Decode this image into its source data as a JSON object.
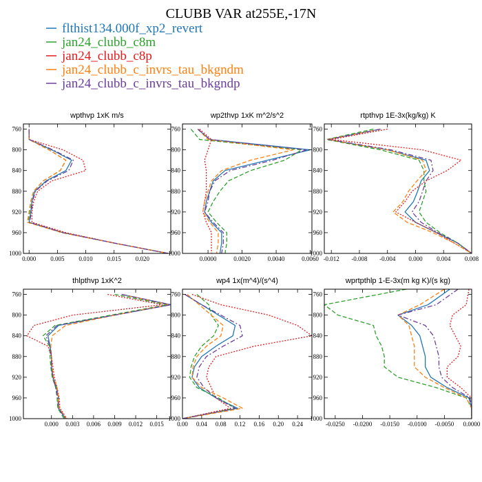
{
  "title": "CLUBB VAR at255E,-17N",
  "legend": [
    {
      "label": "flthist134.000f_xp2_revert",
      "color": "#1f77b4",
      "dash": "solid"
    },
    {
      "label": "jan24_clubb_c8m",
      "color": "#2ca02c",
      "dash": "dash"
    },
    {
      "label": "jan24_clubb_c8p",
      "color": "#e31a1c",
      "dash": "dot"
    },
    {
      "label": "jan24_clubb_c_invrs_tau_bkgndm",
      "color": "#ff7f0e",
      "dash": "dash"
    },
    {
      "label": "jan24_clubb_c_invrs_tau_bkgndp",
      "color": "#6a3d9a",
      "dash": "dashdot"
    }
  ],
  "chart_data": [
    {
      "type": "line",
      "title": "wpthvp  1xK m/s",
      "xlim": [
        -0.001,
        0.025
      ],
      "ylim": [
        1000,
        750
      ],
      "xticks": [
        0.0,
        0.005,
        0.01,
        0.015,
        0.02
      ],
      "xtick_labels": [
        "0.000",
        "0.005",
        "0.010",
        "0.015",
        "0.020"
      ],
      "yticks": [
        760,
        800,
        840,
        880,
        920,
        960,
        1000
      ],
      "y": [
        760,
        780,
        800,
        820,
        840,
        860,
        880,
        900,
        920,
        940,
        960,
        980,
        1000
      ],
      "series": [
        {
          "name": "flthist134.000f_xp2_revert",
          "x": [
            0.0,
            0.0,
            0.004,
            0.0075,
            0.0065,
            0.003,
            0.001,
            0.0005,
            0.0003,
            0.0,
            0.006,
            0.015,
            0.0245
          ]
        },
        {
          "name": "jan24_clubb_c8m",
          "x": [
            0.0,
            0.0,
            0.0035,
            0.0065,
            0.0055,
            0.0025,
            0.0008,
            0.0003,
            0.0001,
            -0.0002,
            0.006,
            0.015,
            0.0245
          ]
        },
        {
          "name": "jan24_clubb_c8p",
          "x": [
            0.0,
            0.0,
            0.006,
            0.0095,
            0.01,
            0.004,
            0.0015,
            0.0008,
            0.0005,
            0.0005,
            0.0065,
            0.015,
            0.0245
          ]
        },
        {
          "name": "jan24_clubb_c_invrs_tau_bkgndm",
          "x": [
            0.0,
            0.0,
            0.0035,
            0.0065,
            0.0055,
            0.0025,
            0.0008,
            0.0003,
            0.0,
            -0.0003,
            0.0058,
            0.015,
            0.0245
          ]
        },
        {
          "name": "jan24_clubb_c_invrs_tau_bkgndp",
          "x": [
            0.0,
            0.0,
            0.0042,
            0.0078,
            0.007,
            0.0032,
            0.0011,
            0.0006,
            0.0004,
            0.0001,
            0.006,
            0.015,
            0.0245
          ]
        }
      ]
    },
    {
      "type": "line",
      "title": "wp2thvp  1xK m^2/s^2",
      "xlim": [
        -0.0015,
        0.0061
      ],
      "ylim": [
        1000,
        750
      ],
      "xticks": [
        0.0,
        0.002,
        0.004,
        0.006
      ],
      "xtick_labels": [
        "0.0000",
        "0.0020",
        "0.0040",
        "0.0060"
      ],
      "yticks": [
        760,
        800,
        840,
        880,
        920,
        960,
        1000
      ],
      "y": [
        760,
        780,
        800,
        820,
        840,
        860,
        880,
        900,
        920,
        940,
        960,
        980,
        1000
      ],
      "series": [
        {
          "name": "flthist134.000f_xp2_revert",
          "x": [
            -0.0006,
            0.0001,
            0.006,
            0.0035,
            0.001,
            0.0003,
            0.0001,
            -0.0001,
            -0.0002,
            0.0002,
            0.0008,
            0.0008,
            0.0007
          ]
        },
        {
          "name": "jan24_clubb_c8m",
          "x": [
            -0.001,
            -0.0005,
            0.0055,
            0.0045,
            0.0025,
            0.0012,
            0.0007,
            0.0003,
            0.0,
            0.0005,
            0.0011,
            0.0011,
            0.001
          ]
        },
        {
          "name": "jan24_clubb_c8p",
          "x": [
            -0.0005,
            0.0002,
            0.0,
            -0.0002,
            -0.0001,
            -0.0001,
            -0.0001,
            -0.0002,
            -0.0003,
            -0.0001,
            0.0002,
            0.0002,
            0.0002
          ]
        },
        {
          "name": "jan24_clubb_c_invrs_tau_bkgndm",
          "x": [
            -0.0006,
            0.0,
            0.005,
            0.0025,
            0.0008,
            0.0002,
            0.0,
            -0.0002,
            -0.0003,
            0.0001,
            0.0006,
            0.0006,
            0.0005
          ]
        },
        {
          "name": "jan24_clubb_c_invrs_tau_bkgndp",
          "x": [
            -0.0006,
            0.0001,
            0.0058,
            0.0038,
            0.0013,
            0.0004,
            0.0001,
            0.0,
            -0.0002,
            0.0003,
            0.0009,
            0.0009,
            0.0008
          ]
        }
      ]
    },
    {
      "type": "line",
      "title": "rtpthvp  1E-3x(kg/kg) K",
      "xlim": [
        -0.013,
        0.008
      ],
      "ylim": [
        1000,
        750
      ],
      "xticks": [
        -0.012,
        -0.008,
        -0.004,
        0.0,
        0.004,
        0.008
      ],
      "xtick_labels": [
        "-0.012",
        "-0.008",
        "-0.004",
        "0.000",
        "0.004",
        "0.008"
      ],
      "yticks": [
        760,
        800,
        840,
        880,
        920,
        960,
        1000
      ],
      "y": [
        760,
        780,
        800,
        820,
        840,
        860,
        880,
        900,
        920,
        940,
        960,
        980,
        1000
      ],
      "series": [
        {
          "name": "flthist134.000f_xp2_revert",
          "x": [
            -0.005,
            -0.0125,
            -0.004,
            0.0015,
            0.002,
            0.0008,
            0.0003,
            -0.0003,
            -0.0015,
            0.0,
            0.003,
            0.006,
            0.008
          ]
        },
        {
          "name": "jan24_clubb_c8m",
          "x": [
            -0.006,
            -0.0127,
            -0.005,
            0.0005,
            0.0012,
            0.0012,
            0.0015,
            0.001,
            0.0005,
            0.0015,
            0.0035,
            0.006,
            0.008
          ]
        },
        {
          "name": "jan24_clubb_c8p",
          "x": [
            -0.004,
            -0.012,
            0.001,
            0.0065,
            0.0045,
            0.0015,
            -0.0005,
            -0.0015,
            -0.0028,
            0.0,
            0.003,
            0.0055,
            0.008
          ]
        },
        {
          "name": "jan24_clubb_c_invrs_tau_bkgndm",
          "x": [
            -0.005,
            -0.0125,
            -0.004,
            0.001,
            0.0015,
            0.0002,
            -0.001,
            -0.0018,
            -0.0032,
            -0.0012,
            0.0025,
            0.0055,
            0.008
          ]
        },
        {
          "name": "jan24_clubb_c_invrs_tau_bkgndp",
          "x": [
            -0.005,
            -0.0124,
            -0.0035,
            0.0022,
            0.0025,
            0.0015,
            0.001,
            0.0005,
            -0.0005,
            0.0008,
            0.0032,
            0.006,
            0.008
          ]
        }
      ]
    },
    {
      "type": "line",
      "title": "thlpthvp  1xK^2",
      "xlim": [
        -0.004,
        0.017
      ],
      "ylim": [
        1000,
        750
      ],
      "xticks": [
        0.0,
        0.003,
        0.006,
        0.009,
        0.012,
        0.015
      ],
      "xtick_labels": [
        "0.000",
        "0.003",
        "0.006",
        "0.009",
        "0.012",
        "0.015"
      ],
      "yticks": [
        760,
        800,
        840,
        880,
        920,
        960,
        1000
      ],
      "y": [
        760,
        780,
        800,
        820,
        840,
        860,
        880,
        900,
        920,
        940,
        960,
        980,
        1000
      ],
      "series": [
        {
          "name": "flthist134.000f_xp2_revert",
          "x": [
            0.01,
            0.017,
            0.009,
            0.001,
            -0.0005,
            -0.0002,
            0.0,
            0.0,
            0.0002,
            0.0007,
            0.001,
            0.001,
            0.002
          ]
        },
        {
          "name": "jan24_clubb_c8m",
          "x": [
            0.009,
            0.0165,
            0.0085,
            0.0005,
            -0.0012,
            -0.0003,
            -0.0002,
            -0.0001,
            0.0001,
            0.0006,
            0.0008,
            0.0009,
            0.0018
          ]
        },
        {
          "name": "jan24_clubb_c8p",
          "x": [
            0.008,
            0.0158,
            0.003,
            -0.0025,
            -0.0035,
            -0.0005,
            0.0,
            0.0002,
            0.0004,
            0.0008,
            0.0011,
            0.0012,
            0.0022
          ]
        },
        {
          "name": "jan24_clubb_c_invrs_tau_bkgndm",
          "x": [
            0.01,
            0.0168,
            0.009,
            0.002,
            0.0001,
            -0.0001,
            0.0,
            0.0001,
            0.0003,
            0.0008,
            0.001,
            0.0011,
            0.0021
          ]
        },
        {
          "name": "jan24_clubb_c_invrs_tau_bkgndp",
          "x": [
            0.01,
            0.017,
            0.009,
            0.0008,
            -0.0008,
            -0.0002,
            0.0,
            0.0,
            0.0002,
            0.0006,
            0.0009,
            0.001,
            0.002
          ]
        }
      ]
    },
    {
      "type": "line",
      "title": "wp4  1x(m^4)/(s^4)",
      "xlim": [
        0.0,
        0.27
      ],
      "ylim": [
        1000,
        750
      ],
      "xticks": [
        0.0,
        0.04,
        0.08,
        0.12,
        0.16,
        0.2,
        0.24
      ],
      "xtick_labels": [
        "0.00",
        "0.04",
        "0.08",
        "0.12",
        "0.16",
        "0.20",
        "0.24"
      ],
      "yticks": [
        760,
        800,
        840,
        880,
        920,
        960,
        1000
      ],
      "y": [
        760,
        780,
        800,
        820,
        840,
        860,
        880,
        900,
        920,
        940,
        960,
        980,
        1000
      ],
      "series": [
        {
          "name": "flthist134.000f_xp2_revert",
          "x": [
            0.005,
            0.04,
            0.075,
            0.11,
            0.105,
            0.07,
            0.04,
            0.025,
            0.02,
            0.035,
            0.07,
            0.115,
            0.0
          ]
        },
        {
          "name": "jan24_clubb_c8m",
          "x": [
            0.03,
            0.055,
            0.06,
            0.075,
            0.065,
            0.04,
            0.025,
            0.018,
            0.015,
            0.03,
            0.075,
            0.11,
            0.0
          ]
        },
        {
          "name": "jan24_clubb_c8p",
          "x": [
            0.02,
            0.08,
            0.18,
            0.24,
            0.27,
            0.15,
            0.07,
            0.055,
            0.05,
            0.06,
            0.07,
            0.1,
            0.0
          ]
        },
        {
          "name": "jan24_clubb_c_invrs_tau_bkgndm",
          "x": [
            0.01,
            0.035,
            0.06,
            0.085,
            0.08,
            0.05,
            0.03,
            0.022,
            0.02,
            0.04,
            0.085,
            0.125,
            0.0
          ]
        },
        {
          "name": "jan24_clubb_c_invrs_tau_bkgndp",
          "x": [
            0.005,
            0.04,
            0.08,
            0.12,
            0.125,
            0.085,
            0.05,
            0.035,
            0.03,
            0.045,
            0.07,
            0.11,
            0.0
          ]
        }
      ]
    },
    {
      "type": "line",
      "title": "wprtpthlp  1-E-3x(m kg K)/(s kg)",
      "xlim": [
        -0.027,
        0.0
      ],
      "ylim": [
        1000,
        750
      ],
      "xticks": [
        -0.025,
        -0.02,
        -0.015,
        -0.01,
        -0.005,
        0.0
      ],
      "xtick_labels": [
        "-0.0250",
        "-0.0200",
        "-0.0150",
        "-0.0100",
        "-0.0050",
        "0.0000"
      ],
      "yticks": [
        760,
        800,
        840,
        880,
        920,
        960,
        1000
      ],
      "y": [
        750,
        780,
        800,
        820,
        840,
        860,
        880,
        900,
        920,
        940,
        960,
        980,
        1000
      ],
      "series": [
        {
          "name": "flthist134.000f_xp2_revert",
          "x": [
            -0.004,
            -0.008,
            -0.0135,
            -0.011,
            -0.0095,
            -0.009,
            -0.0085,
            -0.0085,
            -0.0075,
            -0.0045,
            -0.0005,
            0.0,
            0.0
          ]
        },
        {
          "name": "jan24_clubb_c8m",
          "x": [
            -0.012,
            -0.027,
            -0.0245,
            -0.018,
            -0.0175,
            -0.0165,
            -0.016,
            -0.016,
            -0.0135,
            -0.0065,
            -0.001,
            0.0,
            0.0
          ]
        },
        {
          "name": "jan24_clubb_c8p",
          "x": [
            -0.0005,
            -0.001,
            -0.0035,
            -0.004,
            -0.003,
            -0.002,
            -0.0025,
            -0.0045,
            -0.0045,
            -0.002,
            0.0,
            0.0,
            0.0
          ]
        },
        {
          "name": "jan24_clubb_c_invrs_tau_bkgndm",
          "x": [
            -0.005,
            -0.0095,
            -0.0135,
            -0.0115,
            -0.011,
            -0.0105,
            -0.0105,
            -0.0105,
            -0.0085,
            -0.005,
            -0.001,
            0.0,
            0.0
          ]
        },
        {
          "name": "jan24_clubb_c_invrs_tau_bkgndp",
          "x": [
            -0.0025,
            -0.0065,
            -0.0135,
            -0.0085,
            -0.007,
            -0.0065,
            -0.006,
            -0.006,
            -0.0055,
            -0.0035,
            -0.0003,
            0.0,
            0.0
          ]
        }
      ]
    }
  ]
}
